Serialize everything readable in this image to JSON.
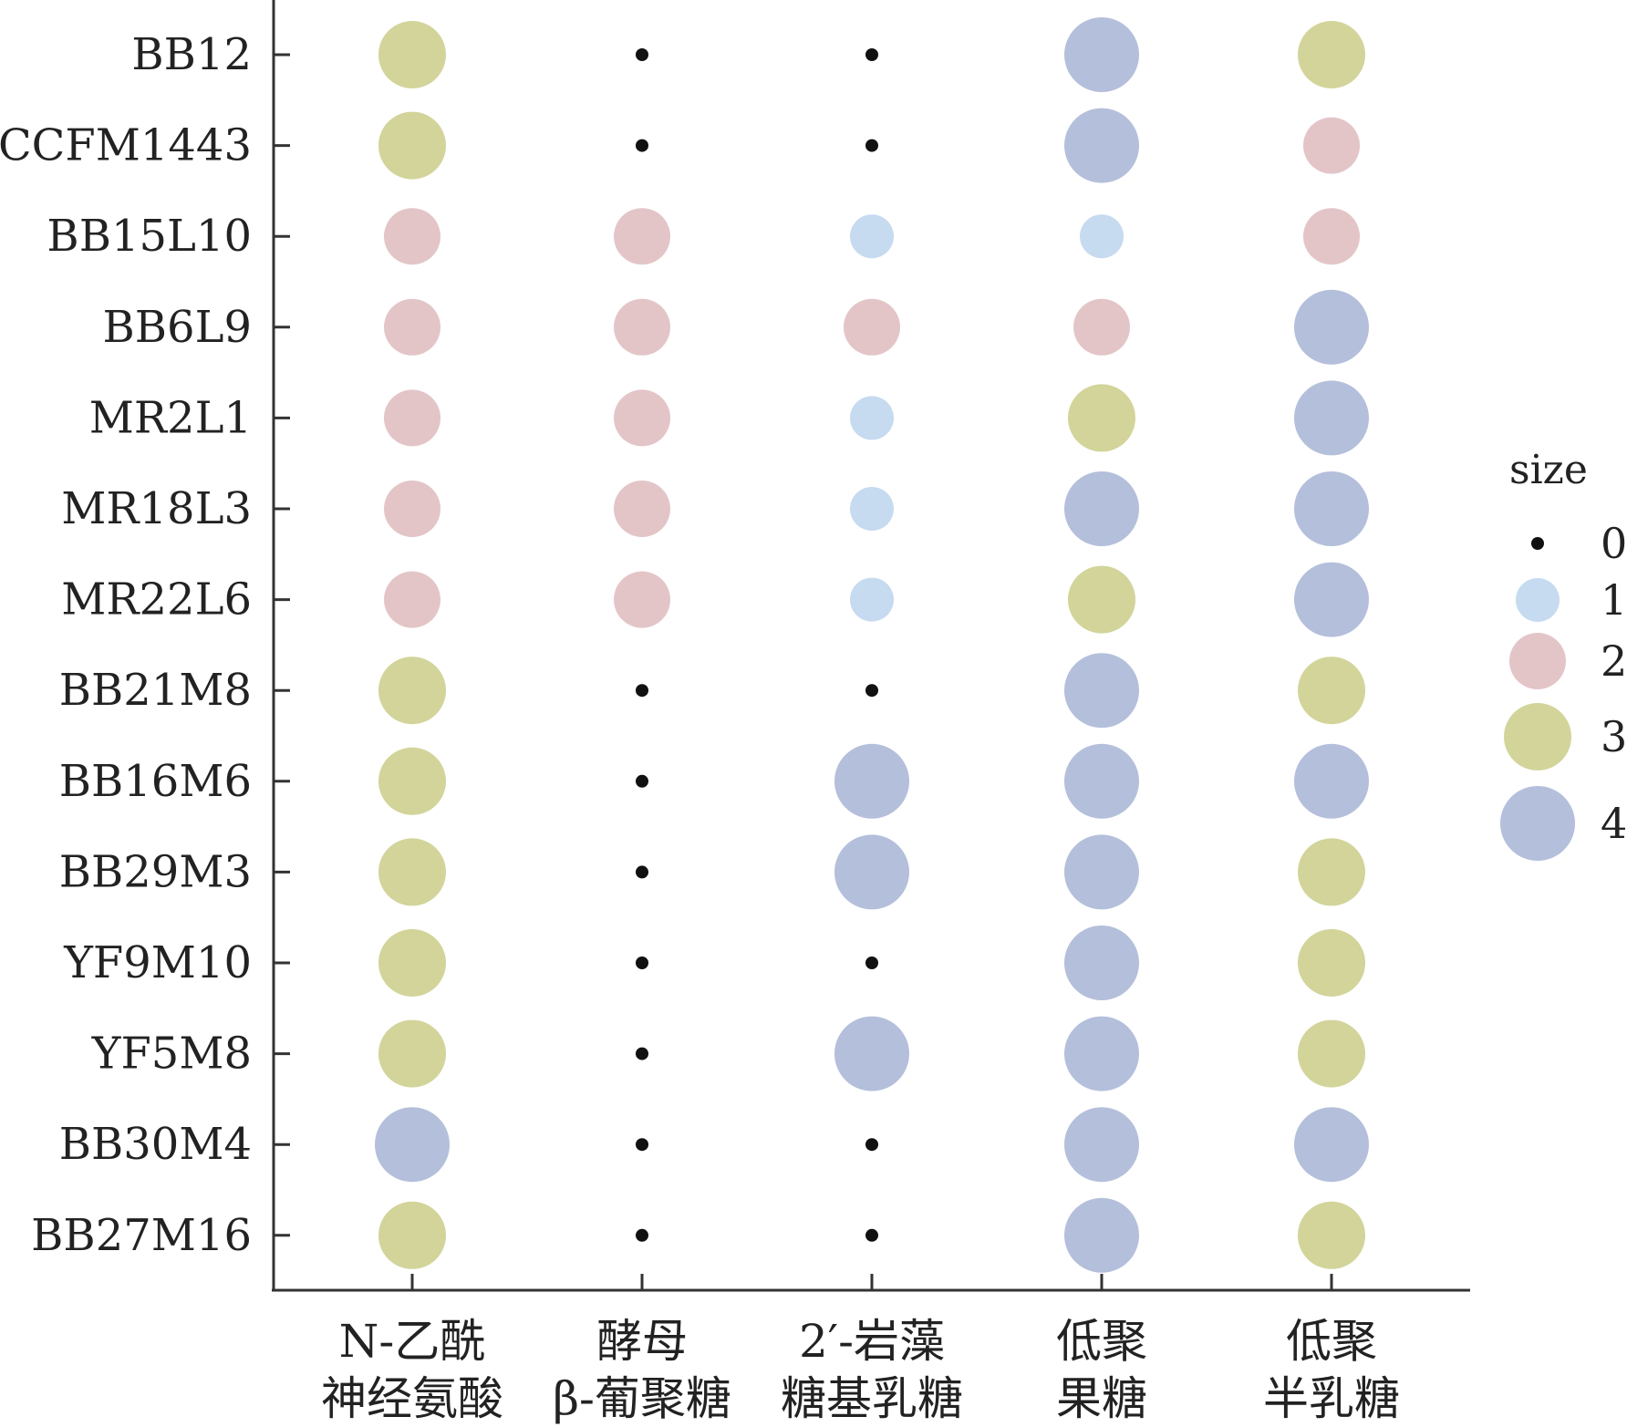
{
  "chart_data": {
    "type": "scatter",
    "title": "",
    "xlabel": "",
    "ylabel": "",
    "categories": [
      [
        "N-乙酰",
        "神经氨酸"
      ],
      [
        "酵母",
        "β-葡聚糖"
      ],
      [
        "2′-岩藻",
        "糖基乳糖"
      ],
      [
        "低聚",
        "果糖"
      ],
      [
        "低聚",
        "半乳糖"
      ]
    ],
    "strains": [
      "BB12",
      "CCFM1443",
      "BB15L10",
      "BB6L9",
      "MR2L1",
      "MR18L3",
      "MR22L6",
      "BB21M8",
      "BB16M6",
      "BB29M3",
      "YF9M10",
      "YF5M8",
      "BB30M4",
      "BB27M16"
    ],
    "values": [
      [
        3,
        0,
        0,
        4,
        3
      ],
      [
        3,
        0,
        0,
        4,
        2
      ],
      [
        2,
        2,
        1,
        1,
        2
      ],
      [
        2,
        2,
        2,
        2,
        4
      ],
      [
        2,
        2,
        1,
        3,
        4
      ],
      [
        2,
        2,
        1,
        4,
        4
      ],
      [
        2,
        2,
        1,
        3,
        4
      ],
      [
        3,
        0,
        0,
        4,
        3
      ],
      [
        3,
        0,
        4,
        4,
        4
      ],
      [
        3,
        0,
        4,
        4,
        3
      ],
      [
        3,
        0,
        0,
        4,
        3
      ],
      [
        3,
        0,
        4,
        4,
        3
      ],
      [
        4,
        0,
        0,
        4,
        4
      ],
      [
        3,
        0,
        0,
        4,
        3
      ]
    ],
    "legend": {
      "title": "size",
      "placement": "right",
      "levels": [
        {
          "label": "0",
          "value": 0,
          "color": "#111111"
        },
        {
          "label": "1",
          "value": 1,
          "color": "#c6daf0"
        },
        {
          "label": "2",
          "value": 2,
          "color": "#e3c5c8"
        },
        {
          "label": "3",
          "value": 3,
          "color": "#d2d49a"
        },
        {
          "label": "4",
          "value": 4,
          "color": "#b4bfdb"
        }
      ]
    }
  }
}
